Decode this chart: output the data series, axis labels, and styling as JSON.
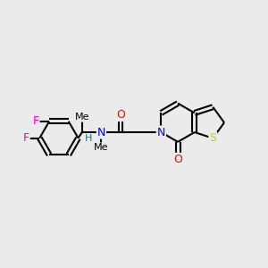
{
  "bg_color": "#ebebeb",
  "atom_colors": {
    "C": "#000000",
    "N": "#0000ff",
    "O": "#ff0000",
    "S": "#cccc00",
    "F": "#ff00aa",
    "H": "#008080"
  },
  "bond_color": "#000000",
  "bond_width": 1.5,
  "font_size_atom": 9,
  "font_size_small": 8
}
